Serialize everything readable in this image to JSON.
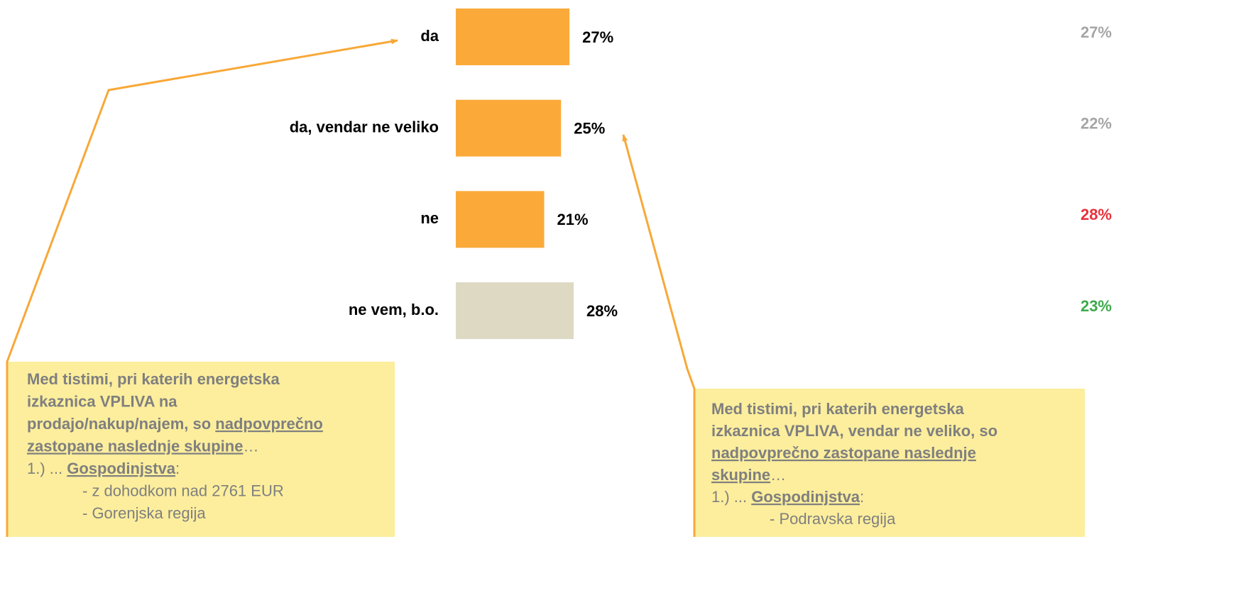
{
  "chart_data": {
    "type": "hbar",
    "categories": [
      "da",
      "da, vendar ne veliko",
      "ne",
      "ne vem, b.o."
    ],
    "values": [
      27,
      25,
      21,
      28
    ],
    "value_labels": [
      "27%",
      "25%",
      "21%",
      "28%"
    ],
    "colors": [
      "#fbaa3a",
      "#fbaa3a",
      "#fbaa3a",
      "#ddd9c3"
    ],
    "xlim": [
      0,
      100
    ],
    "comparison_values": [
      27,
      22,
      28,
      23
    ],
    "comparison_value_labels": [
      "27%",
      "22%",
      "28%",
      "23%"
    ],
    "comparison_colors": [
      "#a6a6a6",
      "#a6a6a6",
      "#e8303a",
      "#3daa4a"
    ],
    "annotations": [
      {
        "lines": [
          {
            "runs": [
              {
                "text": "Med tistimi, pri katerih energetska",
                "bold": true
              }
            ]
          },
          {
            "runs": [
              {
                "text": "izkaznica VPLIVA na",
                "bold": true
              }
            ]
          },
          {
            "runs": [
              {
                "text": "prodajo/nakup/najem, so ",
                "bold": true
              },
              {
                "text": "nadpovprečno",
                "bold": true,
                "underline": true
              }
            ]
          },
          {
            "runs": [
              {
                "text": "zastopane naslednje skupine",
                "bold": true,
                "underline": true
              },
              {
                "text": "…"
              }
            ]
          },
          {
            "runs": [
              {
                "text": "1.) ... "
              },
              {
                "text": "Gospodinjstva",
                "bold": true,
                "underline": true
              },
              {
                "text": ":"
              }
            ]
          },
          {
            "indent": true,
            "runs": [
              {
                "text": "- z dohodkom nad 2761 EUR"
              }
            ]
          },
          {
            "indent": true,
            "runs": [
              {
                "text": "- Gorenjska regija"
              }
            ]
          }
        ]
      },
      {
        "lines": [
          {
            "runs": [
              {
                "text": "Med tistimi, pri katerih energetska",
                "bold": true
              }
            ]
          },
          {
            "runs": [
              {
                "text": "izkaznica VPLIVA, vendar ne veliko, so",
                "bold": true
              }
            ]
          },
          {
            "runs": [
              {
                "text": "nadpovprečno zastopane naslednje",
                "bold": true,
                "underline": true
              }
            ]
          },
          {
            "runs": [
              {
                "text": "skupine",
                "bold": true,
                "underline": true
              },
              {
                "text": "…"
              }
            ]
          },
          {
            "runs": [
              {
                "text": "1.) ... "
              },
              {
                "text": "Gospodinjstva",
                "bold": true,
                "underline": true
              },
              {
                "text": ":"
              }
            ]
          },
          {
            "indent": true,
            "runs": [
              {
                "text": "- Podravska regija"
              }
            ]
          }
        ]
      }
    ]
  }
}
